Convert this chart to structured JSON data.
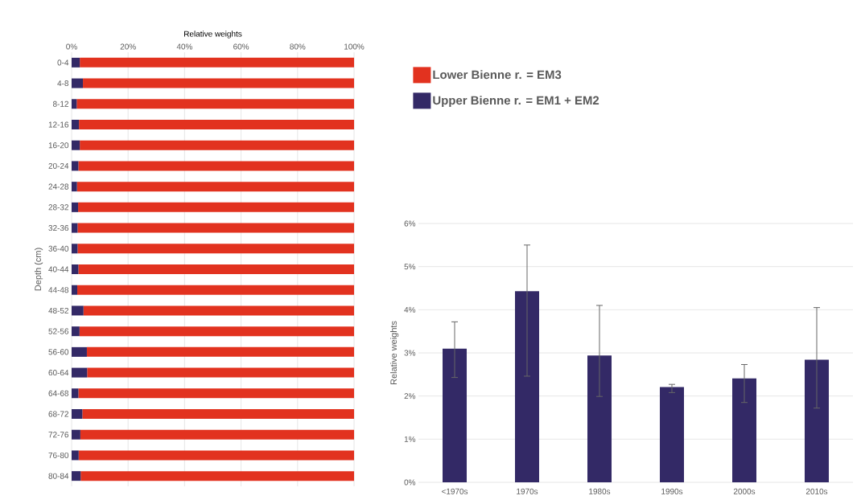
{
  "chart_data": [
    {
      "type": "bar",
      "orientation": "horizontal",
      "stacked": true,
      "xlabel": "Relative weights",
      "ylabel": "Depth (cm)",
      "categories": [
        "0-4",
        "4-8",
        "8-12",
        "12-16",
        "16-20",
        "20-24",
        "24-28",
        "28-32",
        "32-36",
        "36-40",
        "40-44",
        "44-48",
        "48-52",
        "52-56",
        "56-60",
        "60-64",
        "64-68",
        "68-72",
        "72-76",
        "76-80",
        "80-84"
      ],
      "series": [
        {
          "name": "Upper Bienne r. = EM1 + EM2",
          "color": "#332966",
          "values": [
            2.9,
            4.0,
            1.8,
            2.6,
            2.9,
            2.4,
            1.9,
            2.3,
            2.1,
            2.1,
            2.4,
            2.0,
            4.2,
            2.8,
            5.4,
            5.5,
            2.4,
            3.8,
            3.1,
            2.5,
            3.2
          ]
        },
        {
          "name": "Lower Bienne r. = EM3",
          "color": "#e2321f",
          "values": [
            97.1,
            96.0,
            98.2,
            97.4,
            97.1,
            97.6,
            98.1,
            97.7,
            97.9,
            97.9,
            97.6,
            98.0,
            95.8,
            97.2,
            94.6,
            94.5,
            97.6,
            96.2,
            96.9,
            97.5,
            96.8
          ]
        }
      ],
      "xlim": [
        0,
        100
      ],
      "xticks": [
        {
          "value": 0,
          "label": "0%"
        },
        {
          "value": 20,
          "label": "20%"
        },
        {
          "value": 40,
          "label": "40%"
        },
        {
          "value": 60,
          "label": "60%"
        },
        {
          "value": 80,
          "label": "80%"
        },
        {
          "value": 100,
          "label": "100%"
        }
      ],
      "grid": "x",
      "legend": "right"
    },
    {
      "type": "bar",
      "ylabel": "Relative weights",
      "categories": [
        "<1970s",
        "1970s",
        "1980s",
        "1990s",
        "2000s",
        "2010s"
      ],
      "values": [
        3.1,
        4.43,
        2.94,
        2.21,
        2.41,
        2.84
      ],
      "color": "#332966",
      "errors": [
        [
          2.43,
          3.72
        ],
        [
          2.46,
          5.5
        ],
        [
          1.99,
          4.1
        ],
        [
          2.08,
          2.27
        ],
        [
          1.85,
          2.73
        ],
        [
          1.72,
          4.05
        ]
      ],
      "ylim": [
        0,
        6
      ],
      "yticks": [
        {
          "value": 0,
          "label": "0%"
        },
        {
          "value": 1,
          "label": "1%"
        },
        {
          "value": 2,
          "label": "2%"
        },
        {
          "value": 3,
          "label": "3%"
        },
        {
          "value": 4,
          "label": "4%"
        },
        {
          "value": 5,
          "label": "5%"
        },
        {
          "value": 6,
          "label": "6%"
        }
      ],
      "grid": "y"
    }
  ]
}
